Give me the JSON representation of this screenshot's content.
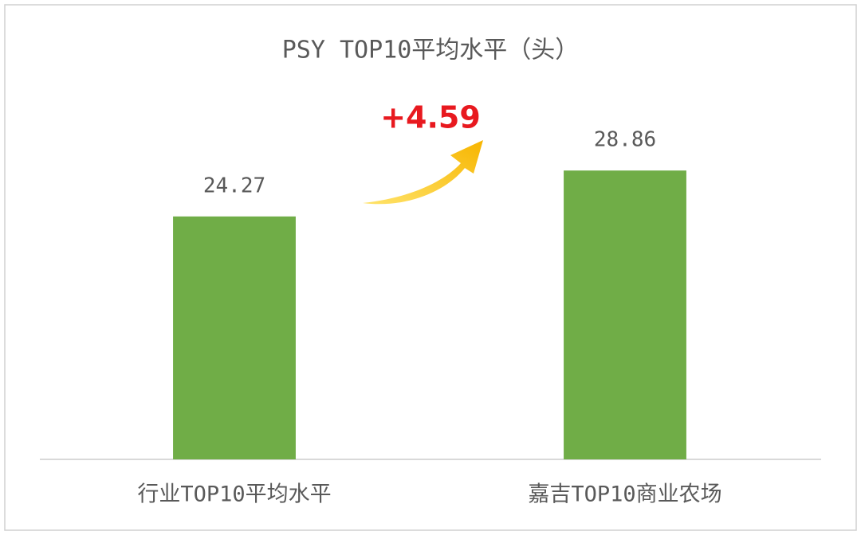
{
  "chart_data": {
    "type": "bar",
    "title": "PSY TOP10平均水平（头）",
    "categories": [
      "行业TOP10平均水平",
      "嘉吉TOP10商业农场"
    ],
    "values": [
      24.27,
      28.86
    ],
    "color": "#70ad47",
    "ylim": [
      0,
      35
    ],
    "annotations": [
      "+4.59"
    ]
  }
}
